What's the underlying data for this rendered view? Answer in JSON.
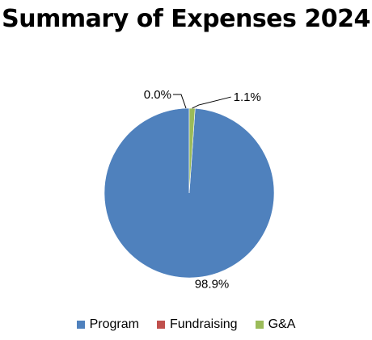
{
  "chart_data": {
    "type": "pie",
    "title": "Summary of Expenses 2024",
    "categories": [
      "Program",
      "Fundraising",
      "G&A"
    ],
    "values": [
      98.9,
      0.0,
      1.1
    ],
    "value_labels": [
      "98.9%",
      "0.0%",
      "1.1%"
    ],
    "colors": [
      "#4f81bd",
      "#c0504d",
      "#9bbb59"
    ],
    "legend_position": "bottom"
  }
}
